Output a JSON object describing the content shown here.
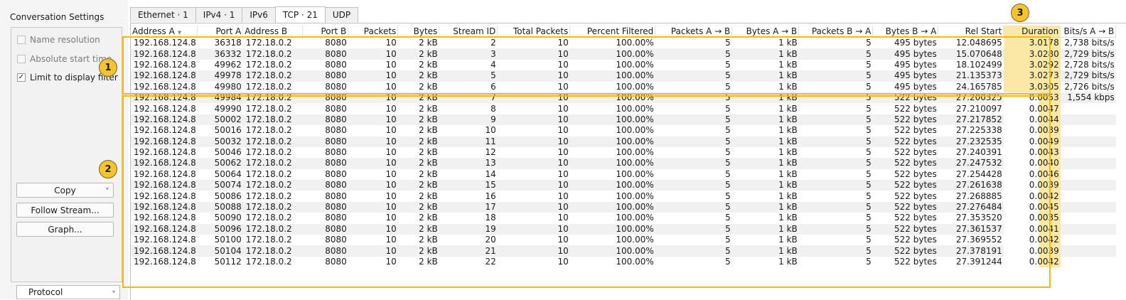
{
  "settings": {
    "title": "Conversation Settings",
    "options": [
      {
        "label": "Name resolution",
        "checked": false,
        "disabled": true
      },
      {
        "label": "Absolute start time",
        "checked": false,
        "disabled": true
      },
      {
        "label": "Limit to display filter",
        "checked": true,
        "disabled": false
      }
    ],
    "check_mark": "✓",
    "buttons": {
      "copy": "Copy",
      "follow_stream": "Follow Stream...",
      "graph": "Graph..."
    },
    "protocol_label": "Protocol",
    "dropdown_arrow": "▾"
  },
  "tabs": [
    {
      "label": "Ethernet · 1",
      "active": false
    },
    {
      "label": "IPv4 · 1",
      "active": false
    },
    {
      "label": "IPv6",
      "active": false
    },
    {
      "label": "TCP · 21",
      "active": true
    },
    {
      "label": "UDP",
      "active": false
    }
  ],
  "table": {
    "columns": [
      "Address A",
      "Port A",
      "Address B",
      "Port B",
      "Packets",
      "Bytes",
      "Stream ID",
      "Total Packets",
      "Percent Filtered",
      "Packets A → B",
      "Bytes A → B",
      "Packets B → A",
      "Bytes B → A",
      "Rel Start",
      "Duration",
      "Bits/s A → B"
    ],
    "rows": [
      [
        "192.168.124.8",
        "36318",
        "172.18.0.2",
        "8080",
        "10",
        "2 kB",
        "2",
        "10",
        "100.00%",
        "5",
        "1 kB",
        "5",
        "495 bytes",
        "12.048695",
        "3.0178",
        "2,738 bits/s"
      ],
      [
        "192.168.124.8",
        "36332",
        "172.18.0.2",
        "8080",
        "10",
        "2 kB",
        "3",
        "10",
        "100.00%",
        "5",
        "1 kB",
        "5",
        "495 bytes",
        "15.070648",
        "3.0280",
        "2,729 bits/s"
      ],
      [
        "192.168.124.8",
        "49962",
        "172.18.0.2",
        "8080",
        "10",
        "2 kB",
        "4",
        "10",
        "100.00%",
        "5",
        "1 kB",
        "5",
        "495 bytes",
        "18.102499",
        "3.0292",
        "2,728 bits/s"
      ],
      [
        "192.168.124.8",
        "49978",
        "172.18.0.2",
        "8080",
        "10",
        "2 kB",
        "5",
        "10",
        "100.00%",
        "5",
        "1 kB",
        "5",
        "495 bytes",
        "21.135373",
        "3.0273",
        "2,729 bits/s"
      ],
      [
        "192.168.124.8",
        "49980",
        "172.18.0.2",
        "8080",
        "10",
        "2 kB",
        "6",
        "10",
        "100.00%",
        "5",
        "1 kB",
        "5",
        "495 bytes",
        "24.165785",
        "3.0305",
        "2,726 bits/s"
      ],
      [
        "192.168.124.8",
        "49984",
        "172.18.0.2",
        "8080",
        "10",
        "2 kB",
        "7",
        "10",
        "100.00%",
        "5",
        "1 kB",
        "5",
        "522 bytes",
        "27.200325",
        "0.0053",
        "1,554 kbps"
      ],
      [
        "192.168.124.8",
        "49990",
        "172.18.0.2",
        "8080",
        "10",
        "2 kB",
        "8",
        "10",
        "100.00%",
        "5",
        "1 kB",
        "5",
        "522 bytes",
        "27.210097",
        "0.0047",
        ""
      ],
      [
        "192.168.124.8",
        "50002",
        "172.18.0.2",
        "8080",
        "10",
        "2 kB",
        "9",
        "10",
        "100.00%",
        "5",
        "1 kB",
        "5",
        "522 bytes",
        "27.217852",
        "0.0044",
        ""
      ],
      [
        "192.168.124.8",
        "50016",
        "172.18.0.2",
        "8080",
        "10",
        "2 kB",
        "10",
        "10",
        "100.00%",
        "5",
        "1 kB",
        "5",
        "522 bytes",
        "27.225338",
        "0.0039",
        ""
      ],
      [
        "192.168.124.8",
        "50032",
        "172.18.0.2",
        "8080",
        "10",
        "2 kB",
        "11",
        "10",
        "100.00%",
        "5",
        "1 kB",
        "5",
        "522 bytes",
        "27.232535",
        "0.0049",
        ""
      ],
      [
        "192.168.124.8",
        "50046",
        "172.18.0.2",
        "8080",
        "10",
        "2 kB",
        "12",
        "10",
        "100.00%",
        "5",
        "1 kB",
        "5",
        "522 bytes",
        "27.240391",
        "0.0043",
        ""
      ],
      [
        "192.168.124.8",
        "50062",
        "172.18.0.2",
        "8080",
        "10",
        "2 kB",
        "13",
        "10",
        "100.00%",
        "5",
        "1 kB",
        "5",
        "522 bytes",
        "27.247532",
        "0.0040",
        ""
      ],
      [
        "192.168.124.8",
        "50064",
        "172.18.0.2",
        "8080",
        "10",
        "2 kB",
        "14",
        "10",
        "100.00%",
        "5",
        "1 kB",
        "5",
        "522 bytes",
        "27.254428",
        "0.0046",
        ""
      ],
      [
        "192.168.124.8",
        "50074",
        "172.18.0.2",
        "8080",
        "10",
        "2 kB",
        "15",
        "10",
        "100.00%",
        "5",
        "1 kB",
        "5",
        "522 bytes",
        "27.261638",
        "0.0039",
        ""
      ],
      [
        "192.168.124.8",
        "50086",
        "172.18.0.2",
        "8080",
        "10",
        "2 kB",
        "16",
        "10",
        "100.00%",
        "5",
        "1 kB",
        "5",
        "522 bytes",
        "27.268885",
        "0.0042",
        ""
      ],
      [
        "192.168.124.8",
        "50088",
        "172.18.0.2",
        "8080",
        "10",
        "2 kB",
        "17",
        "10",
        "100.00%",
        "5",
        "1 kB",
        "5",
        "522 bytes",
        "27.276484",
        "0.0045",
        ""
      ],
      [
        "192.168.124.8",
        "50090",
        "172.18.0.2",
        "8080",
        "10",
        "2 kB",
        "18",
        "10",
        "100.00%",
        "5",
        "1 kB",
        "5",
        "522 bytes",
        "27.353520",
        "0.0035",
        ""
      ],
      [
        "192.168.124.8",
        "50096",
        "172.18.0.2",
        "8080",
        "10",
        "2 kB",
        "19",
        "10",
        "100.00%",
        "5",
        "1 kB",
        "5",
        "522 bytes",
        "27.361537",
        "0.0041",
        ""
      ],
      [
        "192.168.124.8",
        "50100",
        "172.18.0.2",
        "8080",
        "10",
        "2 kB",
        "20",
        "10",
        "100.00%",
        "5",
        "1 kB",
        "5",
        "522 bytes",
        "27.369552",
        "0.0042",
        ""
      ],
      [
        "192.168.124.8",
        "50104",
        "172.18.0.2",
        "8080",
        "10",
        "2 kB",
        "21",
        "10",
        "100.00%",
        "5",
        "1 kB",
        "5",
        "522 bytes",
        "27.378191",
        "0.0039",
        ""
      ],
      [
        "192.168.124.8",
        "50112",
        "172.18.0.2",
        "8080",
        "10",
        "2 kB",
        "22",
        "10",
        "100.00%",
        "5",
        "1 kB",
        "5",
        "522 bytes",
        "27.391244",
        "0.0042",
        ""
      ]
    ],
    "sort_arrow": "▼"
  },
  "annotations": {
    "badge_1": "1",
    "badge_2": "2",
    "badge_3": "3"
  },
  "colors": {
    "highlight_border": "#f0b90e",
    "badge_fill": "#f5c230",
    "duration_bar": "#fbe7a6"
  }
}
